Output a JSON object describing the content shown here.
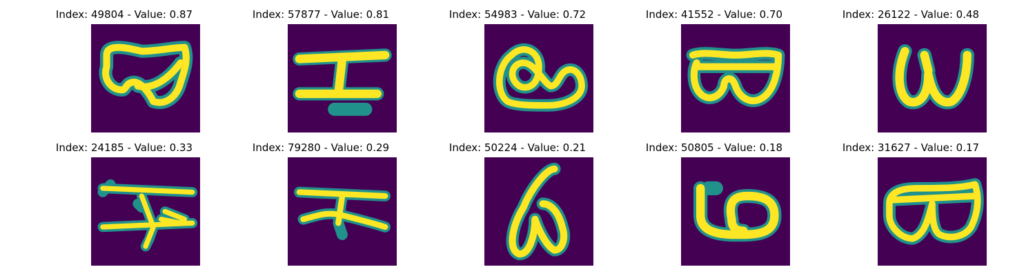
{
  "figure": {
    "colors": {
      "background": "#440154",
      "halo": "#21918c",
      "core": "#fde725",
      "title_text": "#000000"
    },
    "panels": [
      {
        "title": "Index: 49804 - Value: 0.87",
        "index": 49804,
        "value": 0.87,
        "glyph": "glyph-49804-icon"
      },
      {
        "title": "Index: 57877 - Value: 0.81",
        "index": 57877,
        "value": 0.81,
        "glyph": "glyph-57877-icon"
      },
      {
        "title": "Index: 54983 - Value: 0.72",
        "index": 54983,
        "value": 0.72,
        "glyph": "glyph-54983-icon"
      },
      {
        "title": "Index: 41552 - Value: 0.70",
        "index": 41552,
        "value": 0.7,
        "glyph": "glyph-41552-icon"
      },
      {
        "title": "Index: 26122 - Value: 0.48",
        "index": 26122,
        "value": 0.48,
        "glyph": "glyph-26122-icon"
      },
      {
        "title": "Index: 24185 - Value: 0.33",
        "index": 24185,
        "value": 0.33,
        "glyph": "glyph-24185-icon"
      },
      {
        "title": "Index: 79280 - Value: 0.29",
        "index": 79280,
        "value": 0.29,
        "glyph": "glyph-79280-icon"
      },
      {
        "title": "Index: 50224 - Value: 0.21",
        "index": 50224,
        "value": 0.21,
        "glyph": "glyph-50224-icon"
      },
      {
        "title": "Index: 50805 - Value: 0.18",
        "index": 50805,
        "value": 0.18,
        "glyph": "glyph-50805-icon"
      },
      {
        "title": "Index: 31627 - Value: 0.17",
        "index": 31627,
        "value": 0.17,
        "glyph": "glyph-31627-icon"
      }
    ]
  }
}
